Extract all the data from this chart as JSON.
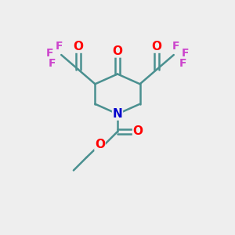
{
  "background_color": "#eeeeee",
  "bond_color": "#4a9090",
  "o_color": "#ff0000",
  "f_color": "#cc44cc",
  "n_color": "#0000cc",
  "line_width": 1.8,
  "font_size_atom": 11,
  "figsize": [
    3.0,
    3.0
  ],
  "dpi": 100,
  "xlim": [
    0,
    10
  ],
  "ylim": [
    0,
    10
  ]
}
